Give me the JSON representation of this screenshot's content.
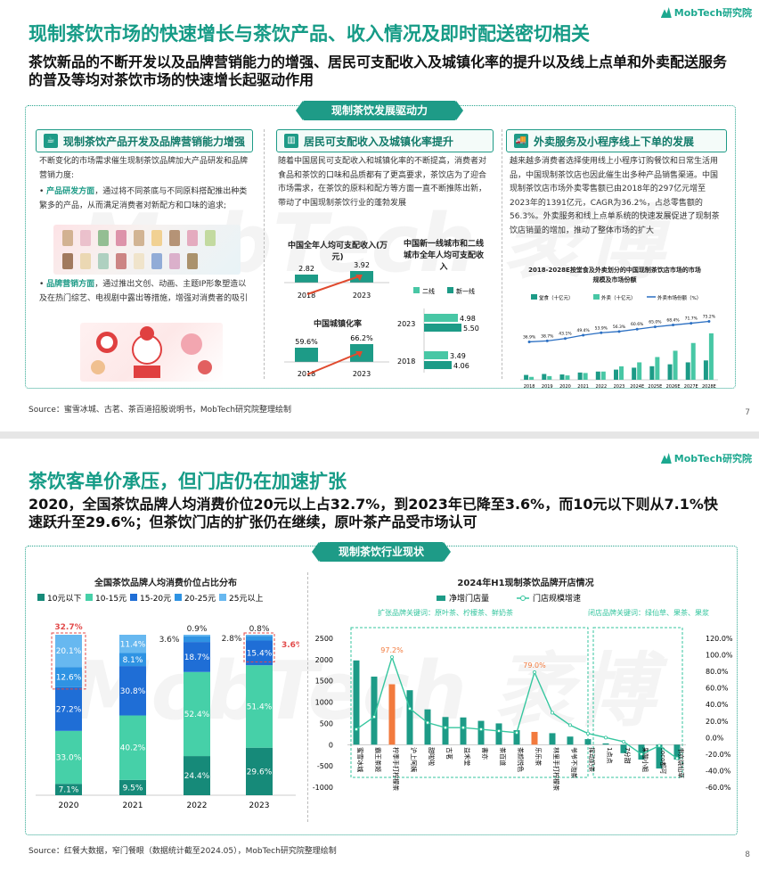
{
  "slide1": {
    "logo": "MobTech研究院",
    "title": "现制茶饮市场的快速增长与茶饮产品、收入情况及即时配送密切相关",
    "subtitle": "茶饮新品的不断开发以及品牌营销能力的增强、居民可支配收入及城镇化率的提升以及线上点单和外卖配送服务的普及等均对茶饮市场的快速增长起驱动作用",
    "banner": "现制茶饮发展驱动力",
    "col1": {
      "heading": "现制茶饮产品开发及品牌营销能力增强",
      "intro": "不断变化的市场需求催生现制茶饮品牌加大产品研发和品牌营销力度:",
      "b1_key": "产品研发方面",
      "b1_text": "，通过将不同茶底与不同原料搭配推出种类繁多的产品，从而满足消费者对新配方和口味的追求;",
      "b2_key": "品牌营销方面",
      "b2_text": "，通过推出文创、动画、主题IP形象塑造以及在热门综艺、电视剧中露出等措施，增强对消费者的吸引"
    },
    "col2": {
      "heading": "居民可支配收入及城镇化率提升",
      "text": "随着中国居民可支配收入和城镇化率的不断提高，消费者对食品和茶饮的口味和品质都有了更高要求，茶饮店为了迎合市场需求，在茶饮的原料和配方等方面一直不断推陈出新，带动了中国现制茶饮行业的蓬勃发展",
      "income_title": "中国全年人均可支配收入(万元)",
      "income_vals": [
        "2.82",
        "3.92"
      ],
      "income_years": [
        "2018",
        "2023"
      ],
      "tier_title": "中国新一线城市和二线城市全年人均可支配收入",
      "tier_legend": [
        "二线",
        "新一线"
      ],
      "tier_years": [
        "2023",
        "2018"
      ],
      "tier_vals": [
        [
          "4.98",
          "5.50"
        ],
        [
          "3.49",
          "4.06"
        ]
      ],
      "urban_title": "中国城镇化率",
      "urban_vals": [
        "59.6%",
        "66.2%"
      ],
      "urban_years": [
        "2018",
        "2023"
      ]
    },
    "col3": {
      "heading": "外卖服务及小程序线上下单的发展",
      "text": "越来越多消费者选择使用线上小程序订购餐饮和日常生活用品，中国现制茶饮店也因此催生出多种产品销售渠道。中国现制茶饮店市场外卖零售额已由2018年的297亿元增至2023年的1391亿元，CAGR为36.2%，占总零售额的56.3%。外卖服务和线上点单系统的快速发展促进了现制茶饮店销量的增加，推动了整体市场的扩大",
      "chart_title": "2018-2028E按堂食及外卖划分的中国现制茶饮店市场的市场规模及市场份额",
      "legend": [
        "堂食（十亿元）",
        "外卖（十亿元）",
        "外卖市场份额（%）"
      ]
    },
    "source": "Source：蜜雪冰城、古茗、茶百道招股说明书，MobTech研究院整理绘制",
    "page": "7"
  },
  "slide2": {
    "logo": "MobTech研究院",
    "title": "茶饮客单价承压，但门店仍在加速扩张",
    "subtitle": "2020，全国茶饮品牌人均消费价位20元以上占32.7%，到2023年已降至3.6%，而10元以下则从7.1%快速跃升至29.6%；但茶饮门店的扩张仍在继续，原叶茶产品受市场认可",
    "banner": "现制茶饮行业现状",
    "source": "Source：红餐大数据，窄门餐眼（数据统计截至2024.05），MobTech研究院整理绘制",
    "page": "8",
    "ann_left": "扩张品牌关键词：原叶茶、柠檬茶、鲜奶茶",
    "ann_right": "闭店品牌关键词：绿仙草、果茶、果浆",
    "callouts": [
      "32.7%",
      "3.6%"
    ]
  },
  "chart_data": [
    {
      "type": "line",
      "title": "中国全年人均可支配收入(万元)",
      "categories": [
        "2018",
        "2023"
      ],
      "values": [
        2.82,
        3.92
      ]
    },
    {
      "type": "bar",
      "title": "中国新一线城市和二线城市全年人均可支配收入",
      "categories": [
        "2023",
        "2018"
      ],
      "series": [
        {
          "name": "二线",
          "values": [
            4.98,
            3.49
          ]
        },
        {
          "name": "新一线",
          "values": [
            5.5,
            4.06
          ]
        }
      ]
    },
    {
      "type": "line",
      "title": "中国城镇化率",
      "categories": [
        "2018",
        "2023"
      ],
      "values": [
        59.6,
        66.2
      ]
    },
    {
      "type": "bar",
      "title": "2018-2028E按堂食及外卖划分的中国现制茶饮店市场的市场规模及市场份额",
      "categories": [
        "2018",
        "2019",
        "2020",
        "2021",
        "2022",
        "2023",
        "2024E",
        "2025E",
        "2026E",
        "2027E",
        "2028E"
      ],
      "series": [
        {
          "name": "堂食（十亿元）",
          "values": [
            50,
            60,
            55,
            75,
            85,
            105,
            125,
            140,
            160,
            180,
            200
          ]
        },
        {
          "name": "外卖（十亿元）",
          "values": [
            30,
            38,
            45,
            70,
            85,
            139,
            180,
            235,
            300,
            380,
            480
          ]
        },
        {
          "name": "外卖市场份额（%）",
          "values": [
            36.9,
            38.7,
            43.1,
            49.4,
            53.9,
            56.3,
            60.6,
            65.0,
            68.4,
            71.7,
            75.2
          ]
        }
      ],
      "data_labels": [
        "36.9%",
        "38.7%",
        "43.1%",
        "49.4%",
        "53.9%",
        "56.3%",
        "60.6%",
        "65.0%",
        "68.4%",
        "71.7%",
        "75.2%"
      ]
    },
    {
      "type": "bar",
      "title": "全国茶饮品牌人均消费价位占比分布",
      "categories": [
        "2020",
        "2021",
        "2022",
        "2023"
      ],
      "legend": [
        "10元以下",
        "10-15元",
        "15-20元",
        "20-25元",
        "25元以上"
      ],
      "series": [
        {
          "name": "10元以下",
          "values": [
            7.1,
            9.5,
            24.4,
            29.6
          ]
        },
        {
          "name": "10-15元",
          "values": [
            33.0,
            40.2,
            52.4,
            51.4
          ]
        },
        {
          "name": "15-20元",
          "values": [
            27.2,
            30.8,
            18.7,
            15.4
          ]
        },
        {
          "name": "20-25元",
          "values": [
            12.6,
            8.1,
            3.6,
            2.8
          ]
        },
        {
          "name": "25元以上",
          "values": [
            20.1,
            11.4,
            0.9,
            0.8
          ]
        }
      ],
      "labels": [
        [
          "7.1%",
          "33.0%",
          "27.2%",
          "12.6%",
          "20.1%"
        ],
        [
          "9.5%",
          "40.2%",
          "30.8%",
          "8.1%",
          "11.4%"
        ],
        [
          "24.4%",
          "52.4%",
          "18.7%",
          "3.6%",
          "0.9%"
        ],
        [
          "29.6%",
          "51.4%",
          "15.4%",
          "2.8%",
          "0.8%"
        ]
      ],
      "ylim": [
        0,
        100
      ]
    },
    {
      "type": "bar",
      "title": "2024年H1现制茶饮品牌开店情况",
      "legend": [
        "净增门店量",
        "门店规模增速"
      ],
      "categories": [
        "蜜雪冰城",
        "霸王茶姬",
        "柠季手打柠檬茶",
        "沪上阿姨",
        "甜啦啦",
        "古茗",
        "益禾堂",
        "書亦",
        "茶百道",
        "茶颜悦色",
        "乐乐茶",
        "林里手打柠檬茶",
        "爷爷不泡茶",
        "挥动奶茶",
        "1点点",
        "7分甜",
        "果酸小姐",
        "coco都可",
        "书亦烧仙草"
      ],
      "y_ticks": [
        "2500",
        "2000",
        "1500",
        "1000",
        "500",
        "0",
        "-500",
        "-1000"
      ],
      "y2_ticks": [
        "120.0%",
        "100.0%",
        "80.0%",
        "60.0%",
        "40.0%",
        "20.0%",
        "0.0%",
        "-20.0%",
        "-40.0%",
        "-60.0%"
      ],
      "series": [
        {
          "name": "净增门店量",
          "values": [
            1980,
            1600,
            1420,
            1280,
            830,
            650,
            640,
            560,
            500,
            340,
            300,
            270,
            190,
            130,
            30,
            -200,
            -350,
            -560,
            -350
          ]
        },
        {
          "name": "门店规模增速",
          "values": [
            10,
            25,
            97.2,
            35,
            18,
            12,
            12,
            10,
            8,
            6,
            79.0,
            30,
            15,
            5,
            0,
            -5,
            -20,
            -10,
            -25
          ]
        }
      ],
      "data_labels": [
        "97.2%",
        "79.0%"
      ],
      "ylim": [
        -1000,
        2500
      ],
      "y2lim": [
        -60,
        120
      ]
    }
  ]
}
